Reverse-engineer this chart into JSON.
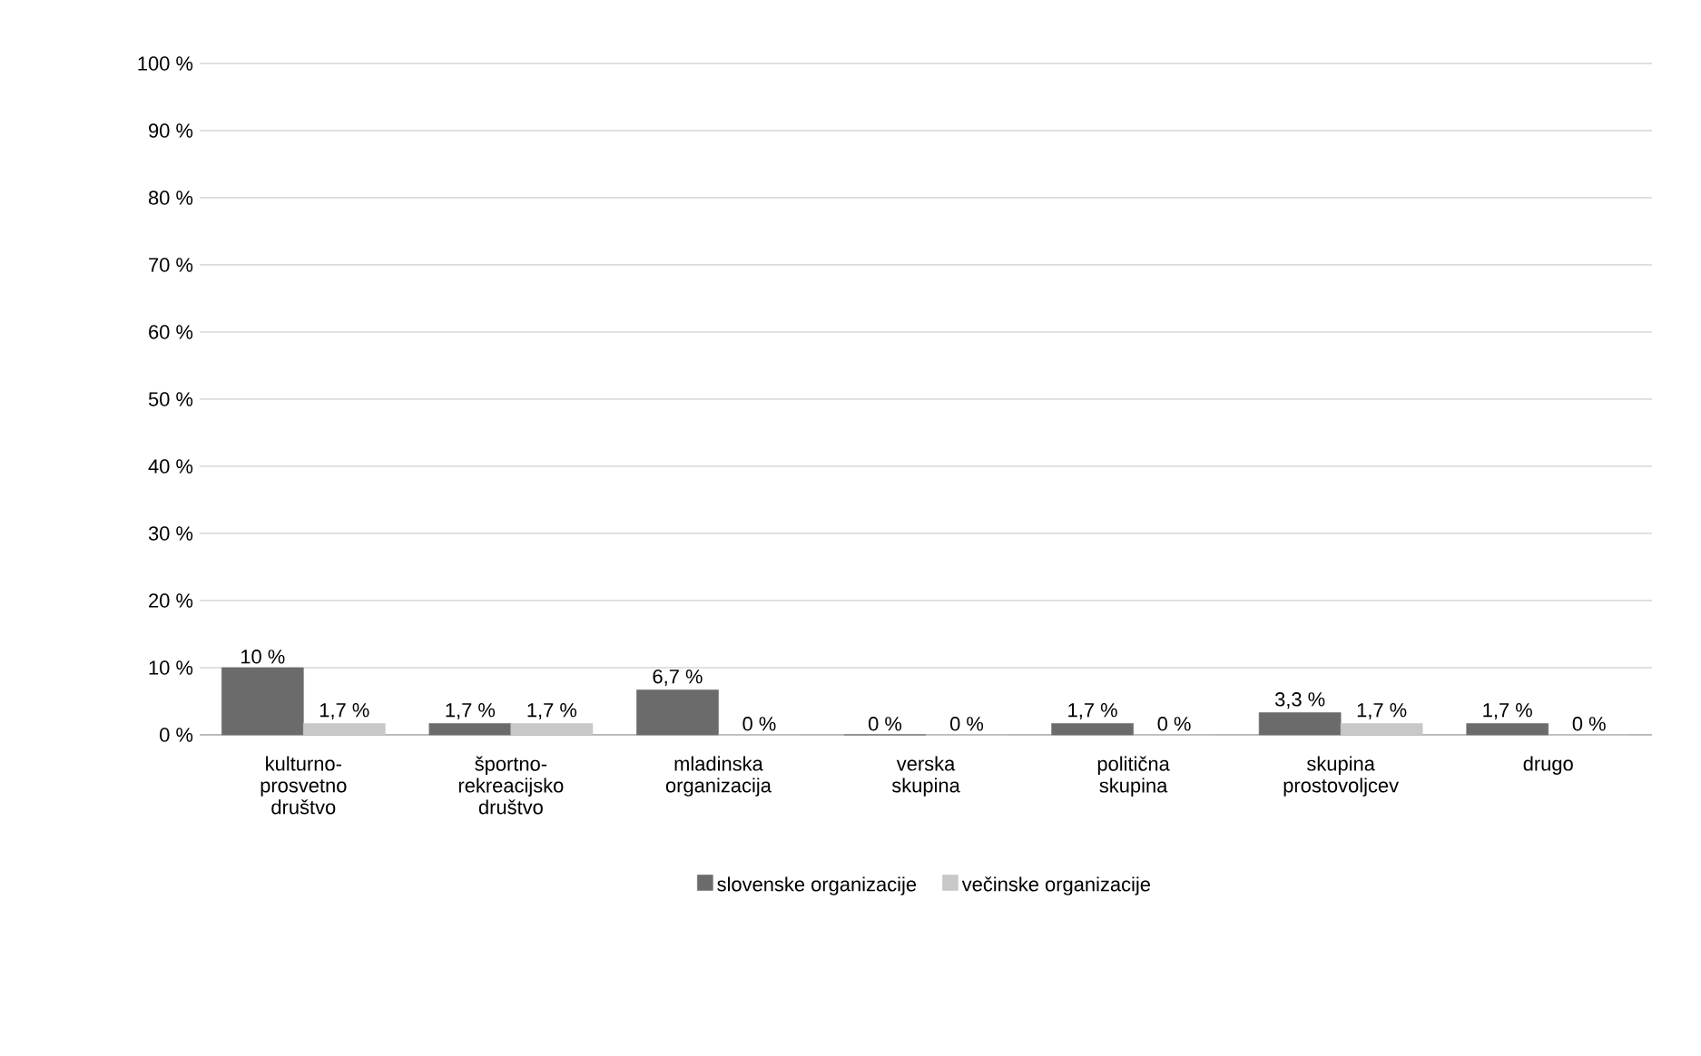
{
  "chart_data": {
    "type": "bar",
    "categories": [
      "kulturno-prosvetno društvo",
      "športno-rekreacijsko društvo",
      "mladinska organizacija",
      "verska skupina",
      "politična skupina",
      "skupina prostovoljcev",
      "drugo"
    ],
    "series": [
      {
        "name": "slovenske organizacije",
        "color": "#6b6b6b",
        "values": [
          10,
          1.7,
          6.7,
          0,
          1.7,
          3.3,
          1.7
        ],
        "value_labels": [
          "10 %",
          "1,7 %",
          "6,7 %",
          "0 %",
          "1,7 %",
          "3,3 %",
          "1,7 %"
        ]
      },
      {
        "name": "večinske organizacije",
        "color": "#c8c8c8",
        "values": [
          1.7,
          1.7,
          0,
          0,
          0,
          1.7,
          0
        ],
        "value_labels": [
          "1,7 %",
          "1,7 %",
          "0 %",
          "0 %",
          "0 %",
          "1,7 %",
          "0 %"
        ]
      }
    ],
    "ylim": [
      0,
      100
    ],
    "yticks": [
      {
        "value": 0,
        "label": "0 %"
      },
      {
        "value": 10,
        "label": "10 %"
      },
      {
        "value": 20,
        "label": "20 %"
      },
      {
        "value": 30,
        "label": "30 %"
      },
      {
        "value": 40,
        "label": "40 %"
      },
      {
        "value": 50,
        "label": "50 %"
      },
      {
        "value": 60,
        "label": "60 %"
      },
      {
        "value": 70,
        "label": "70 %"
      },
      {
        "value": 80,
        "label": "80 %"
      },
      {
        "value": 90,
        "label": "90 %"
      },
      {
        "value": 100,
        "label": "100 %"
      }
    ],
    "grid": "y",
    "legend": "bottom"
  }
}
